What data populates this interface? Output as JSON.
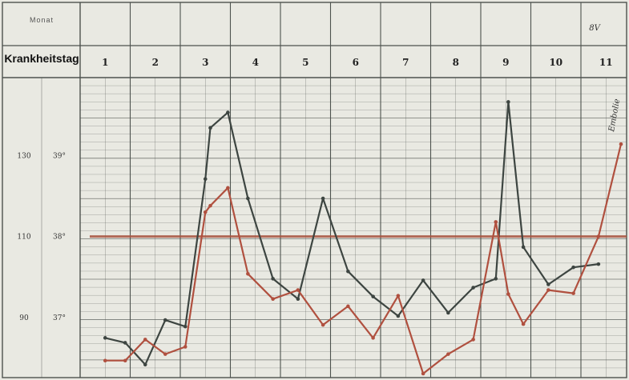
{
  "header": {
    "monat_label": "Monat",
    "krankheitstag_label": "Krankheitstag",
    "corner_mark": "8V"
  },
  "annotations": {
    "right_margin": "Embolie"
  },
  "chart_data": {
    "type": "line",
    "title": "",
    "xlabel": "Krankheitstag",
    "ylabel": "",
    "categories": [
      "1",
      "2",
      "3",
      "4",
      "5",
      "6",
      "7",
      "8",
      "9",
      "10",
      "11"
    ],
    "y_axis_pulse": {
      "ticks": [
        130,
        110,
        90
      ],
      "tick_labels": [
        "130",
        "110",
        "90"
      ]
    },
    "y_axis_temp": {
      "ticks": [
        39,
        38,
        37
      ],
      "tick_labels": [
        "39°",
        "38°",
        "37°"
      ]
    },
    "ylim_temp": [
      36.28,
      39.96
    ],
    "reference_line_temp": 38.0,
    "series": [
      {
        "color": "#3d4541",
        "x": [
          1.0,
          1.4,
          1.8,
          2.2,
          2.6,
          3.0,
          3.1,
          3.45,
          3.85,
          4.35,
          4.85,
          5.35,
          5.85,
          6.35,
          6.85,
          7.35,
          7.85,
          8.35,
          8.8,
          9.05,
          9.35,
          9.85,
          10.35,
          10.85
        ],
        "y": [
          36.75,
          36.69,
          36.42,
          36.97,
          36.89,
          38.71,
          39.34,
          39.53,
          38.47,
          37.48,
          37.23,
          38.47,
          37.57,
          37.26,
          37.02,
          37.46,
          37.06,
          37.37,
          37.48,
          39.66,
          37.87,
          37.41,
          37.62,
          37.66
        ]
      },
      {
        "color": "#b0503f",
        "x": [
          1.0,
          1.4,
          1.8,
          2.2,
          2.6,
          3.0,
          3.1,
          3.45,
          3.85,
          4.35,
          4.85,
          5.35,
          5.85,
          6.35,
          6.85,
          7.35,
          7.85,
          8.35,
          8.8,
          9.05,
          9.35,
          9.85,
          10.35,
          10.85,
          11.3
        ],
        "y": [
          36.47,
          36.47,
          36.73,
          36.55,
          36.64,
          38.3,
          38.38,
          38.6,
          37.54,
          37.23,
          37.34,
          36.91,
          37.14,
          36.75,
          37.27,
          36.31,
          36.55,
          36.73,
          38.18,
          37.29,
          36.92,
          37.34,
          37.3,
          38.0,
          39.14
        ]
      }
    ]
  }
}
